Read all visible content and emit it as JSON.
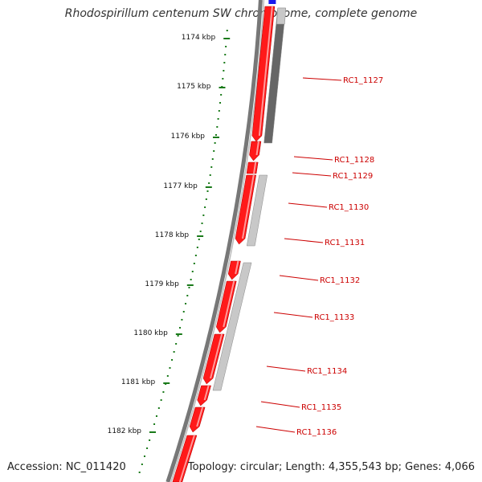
{
  "header": {
    "title": "Rhodospirillum centenum SW chromosome, complete genome"
  },
  "footer": {
    "accession": "Accession: NC_011420",
    "summary": "Topology: circular; Length: 4,355,543 bp; Genes: 4,066"
  },
  "colors": {
    "forward_gene": "#ff1a1a",
    "reverse_gene_dark": "#666666",
    "reverse_gene_light": "#c8c8c8",
    "backbone": "#777777",
    "tick": "#1a7a1a",
    "label": "#cc0000",
    "marker": "#1a1aee"
  },
  "ticks": [
    {
      "label": "1174 kbp"
    },
    {
      "label": "1175 kbp"
    },
    {
      "label": "1176 kbp"
    },
    {
      "label": "1177 kbp"
    },
    {
      "label": "1178 kbp"
    },
    {
      "label": "1179 kbp"
    },
    {
      "label": "1180 kbp"
    },
    {
      "label": "1181 kbp"
    },
    {
      "label": "1182 kbp"
    }
  ],
  "genes": [
    {
      "label": "RC1_1127"
    },
    {
      "label": "RC1_1128"
    },
    {
      "label": "RC1_1129"
    },
    {
      "label": "RC1_1130"
    },
    {
      "label": "RC1_1131"
    },
    {
      "label": "RC1_1132"
    },
    {
      "label": "RC1_1133"
    },
    {
      "label": "RC1_1134"
    },
    {
      "label": "RC1_1135"
    },
    {
      "label": "RC1_1136"
    }
  ]
}
